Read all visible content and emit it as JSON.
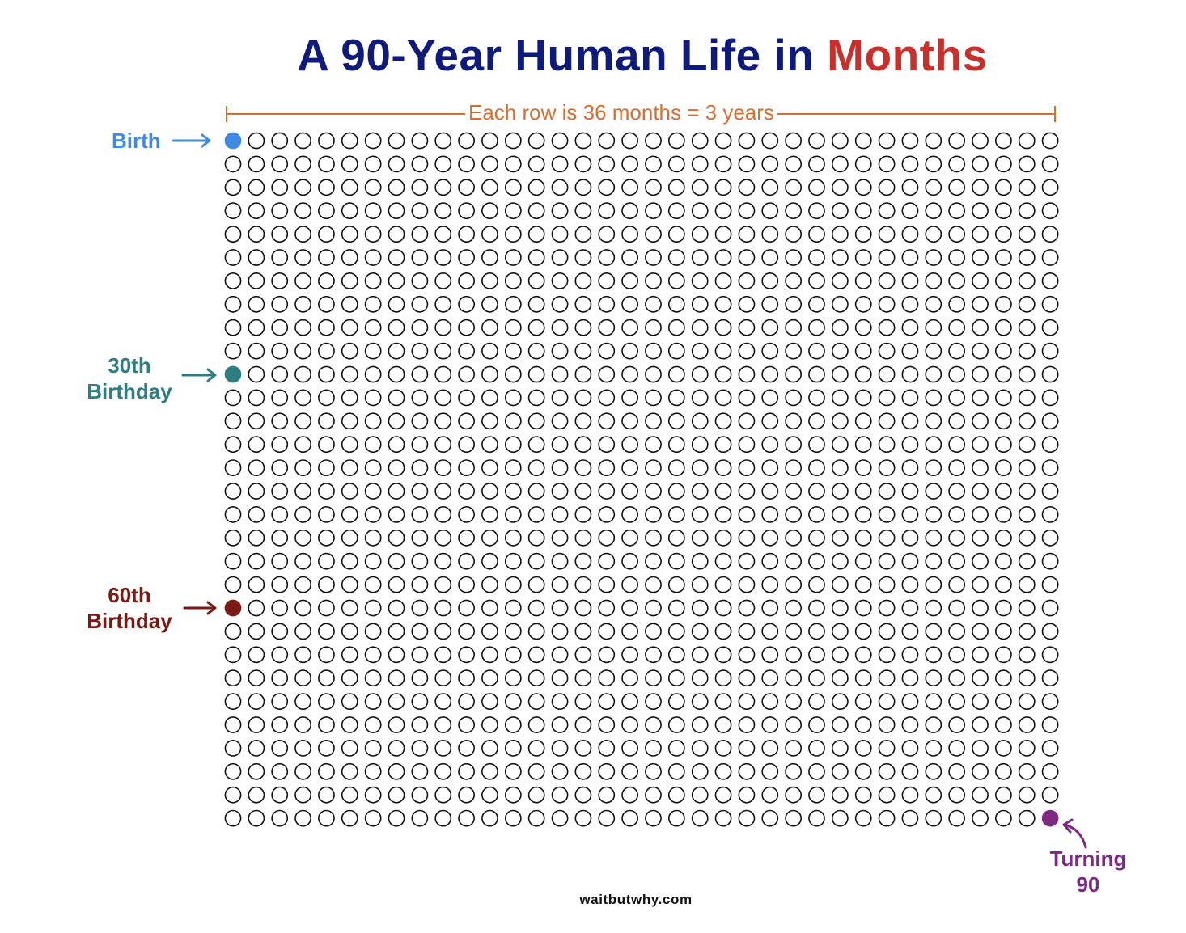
{
  "title": {
    "part1": "A 90-Year Human Life in ",
    "part2": "Months"
  },
  "row_note": "Each row is 36 months = 3 years",
  "labels": {
    "birth": "Birth",
    "thirtieth": [
      "30th",
      "Birthday"
    ],
    "sixtieth": [
      "60th",
      "Birthday"
    ],
    "ninety": [
      "Turning",
      "90"
    ]
  },
  "footer": "waitbutwhy.com",
  "colors": {
    "title": "#0f1a7d",
    "title_accent": "#c8302b",
    "row_note": "#d86e2d",
    "birth": "#3f8ae2",
    "thirtieth": "#2e7d80",
    "sixtieth": "#7a1a12",
    "ninety": "#7e2a82",
    "circle_stroke": "#111111"
  },
  "chart_data": {
    "type": "grid",
    "rows": 30,
    "columns": 36,
    "unit": "month",
    "months_per_row": 36,
    "years_per_row": 3,
    "total_months": 1080,
    "highlighted": [
      {
        "label": "Birth",
        "month": 0,
        "color": "#3f8ae2"
      },
      {
        "label": "30th Birthday",
        "month": 360,
        "color": "#2e7d80"
      },
      {
        "label": "60th Birthday",
        "month": 720,
        "color": "#7a1a12"
      },
      {
        "label": "Turning 90",
        "month": 1079,
        "color": "#7e2a82"
      }
    ]
  }
}
